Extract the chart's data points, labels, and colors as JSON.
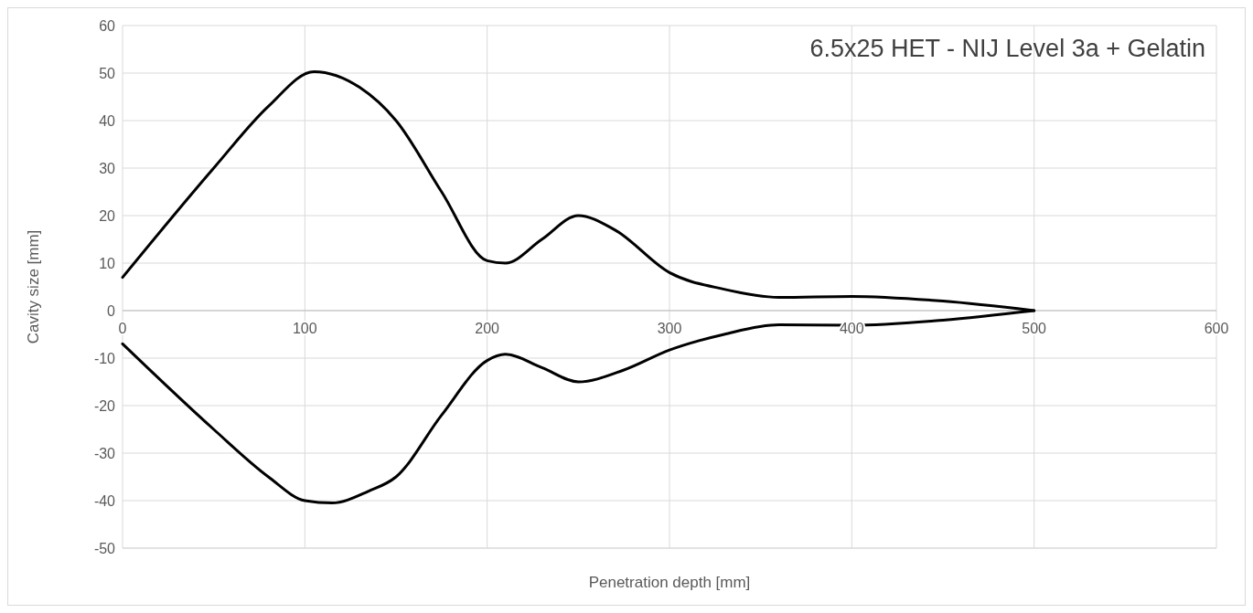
{
  "chart_data": {
    "type": "line",
    "title": "6.5x25 HET - NIJ Level 3a + Gelatin",
    "xlabel": "Penetration depth [mm]",
    "ylabel": "Cavity size [mm]",
    "xlim": [
      0,
      600
    ],
    "xticks": [
      0,
      100,
      200,
      300,
      400,
      500,
      600
    ],
    "ylim": [
      -50,
      60
    ],
    "yticks": [
      -50,
      -40,
      -30,
      -20,
      -10,
      0,
      10,
      20,
      30,
      40,
      50,
      60
    ],
    "grid": true,
    "marker": "none",
    "line_style": "solid",
    "series": [
      {
        "color": "#000000",
        "x": [
          0,
          50,
          80,
          105,
          130,
          150,
          175,
          200,
          210,
          230,
          250,
          270,
          300,
          330,
          360,
          400,
          450,
          500
        ],
        "values": [
          7,
          30,
          43,
          50.3,
          47,
          40,
          25,
          10.5,
          10,
          15,
          20,
          17,
          8,
          4.5,
          2.8,
          3,
          2,
          0
        ]
      },
      {
        "color": "#000000",
        "x": [
          0,
          50,
          80,
          100,
          115,
          135,
          150,
          175,
          200,
          210,
          230,
          250,
          275,
          300,
          330,
          360,
          400,
          450,
          500
        ],
        "values": [
          -7,
          -25,
          -35,
          -40,
          -40.5,
          -38,
          -35,
          -22,
          -10.5,
          -9.2,
          -12,
          -15,
          -12.5,
          -8.3,
          -5,
          -3,
          -3.1,
          -2,
          0
        ]
      }
    ]
  }
}
